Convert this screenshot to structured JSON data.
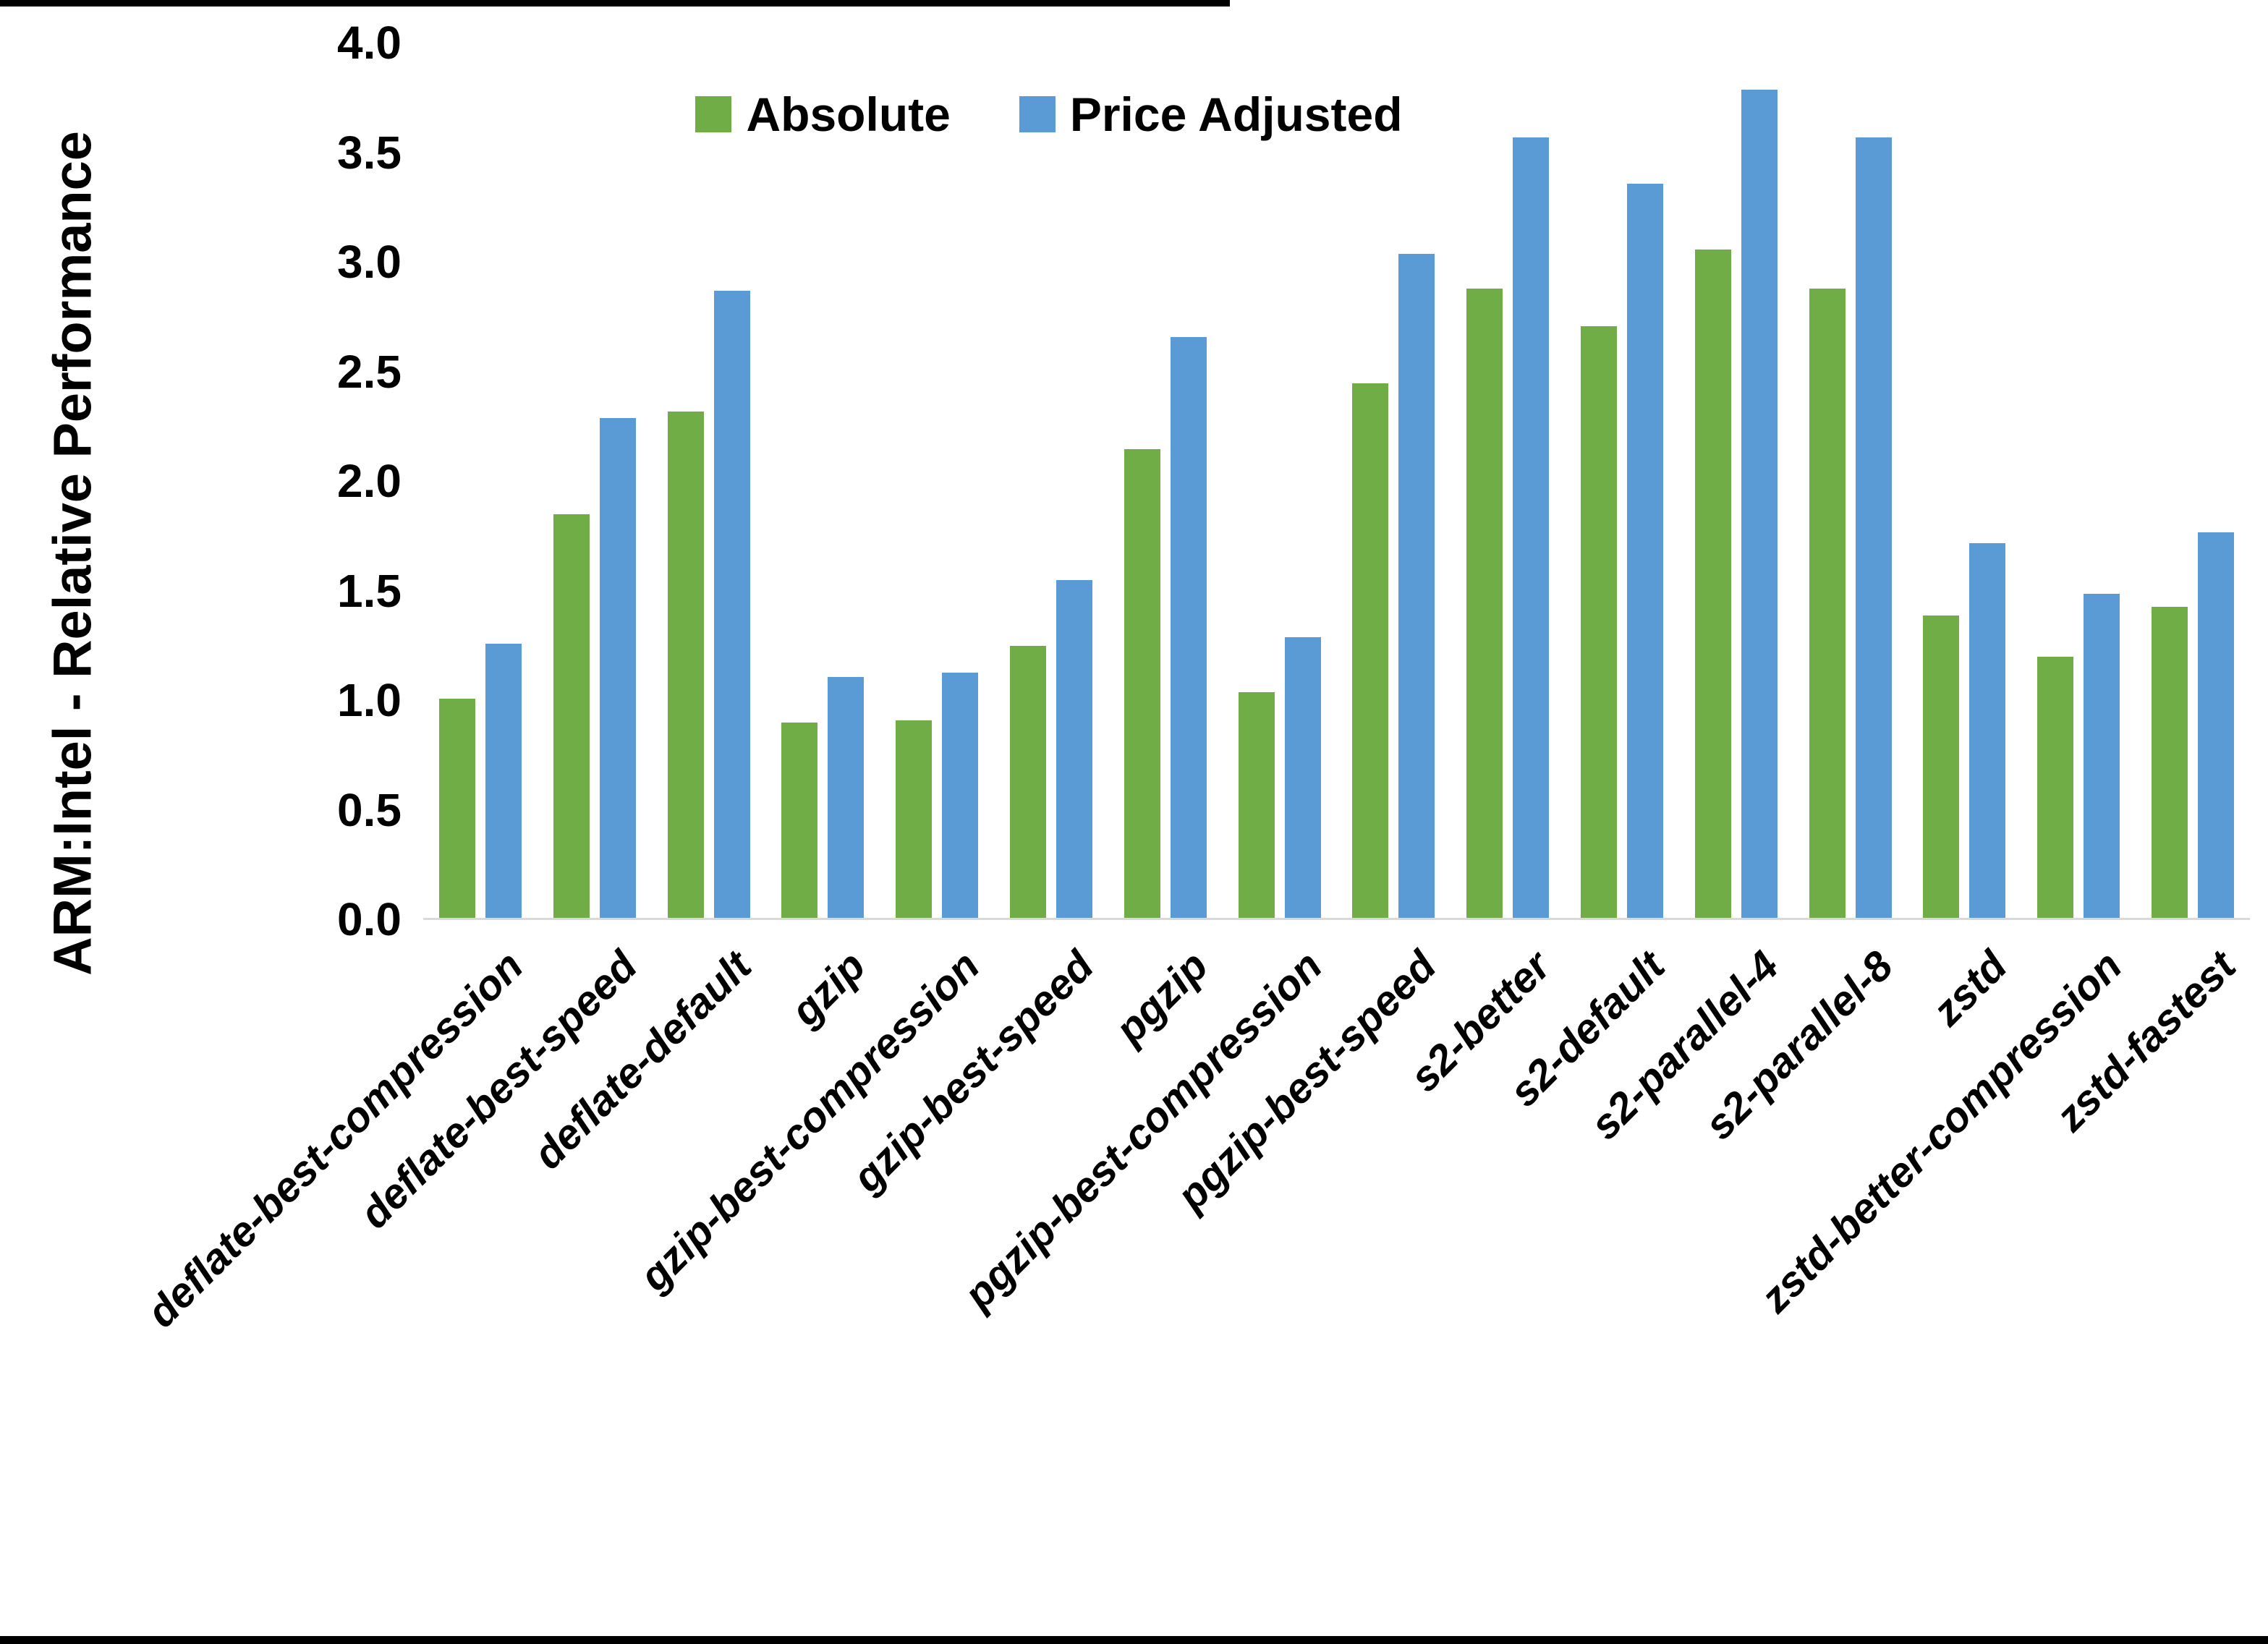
{
  "chart_data": {
    "type": "bar",
    "title": "",
    "y_axis_title": "ARM:Intel - Relative Performance",
    "categories": [
      "deflate-best-compression",
      "deflate-best-speed",
      "deflate-default",
      "gzip",
      "gzip-best-compression",
      "gzip-best-speed",
      "pgzip",
      "pgzip-best-compression",
      "pgzip-best-speed",
      "s2-better",
      "s2-default",
      "s2-parallel-4",
      "s2-parallel-8",
      "zstd",
      "zstd-better-compression",
      "zstd-fastest"
    ],
    "series": [
      {
        "name": "Absolute",
        "color": "#70AD47",
        "values": [
          1.0,
          1.84,
          2.31,
          0.89,
          0.9,
          1.24,
          2.14,
          1.03,
          2.44,
          2.87,
          2.7,
          3.05,
          2.87,
          1.38,
          1.19,
          1.42
        ]
      },
      {
        "name": "Price Adjusted",
        "color": "#5B9BD5",
        "values": [
          1.25,
          2.28,
          2.86,
          1.1,
          1.12,
          1.54,
          2.65,
          1.28,
          3.03,
          3.56,
          3.35,
          3.78,
          3.56,
          1.71,
          1.48,
          1.76
        ]
      }
    ],
    "ylim": [
      0.0,
      4.0
    ],
    "ytick_step": 0.5,
    "yticks": [
      "0.0",
      "0.5",
      "1.0",
      "1.5",
      "2.0",
      "2.5",
      "3.0",
      "3.5",
      "4.0"
    ],
    "grid": "off",
    "legend_position": "top-center",
    "axis_line_color": "#D9D9D9",
    "bar_outline_color": "#FFFFFF"
  }
}
